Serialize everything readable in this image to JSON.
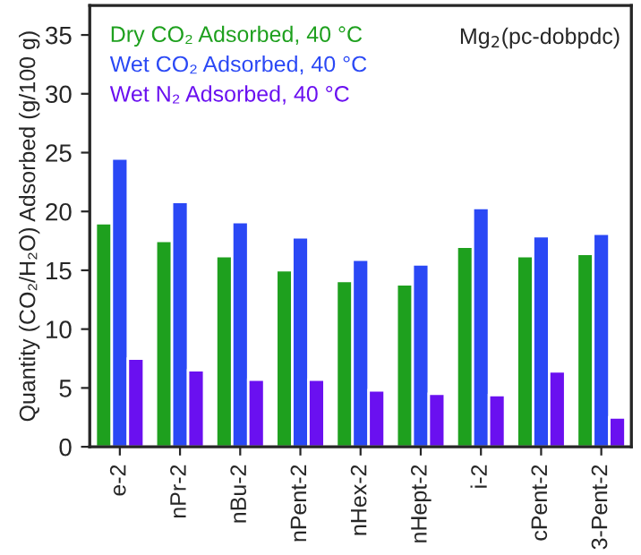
{
  "chart_data": {
    "type": "bar",
    "ylabel": "Quantity (CO₂/H₂O) Adsorbed (g/100 g)",
    "categories": [
      "e-2",
      "nPr-2",
      "nBu-2",
      "nPent-2",
      "nHex-2",
      "nHept-2",
      "i-2",
      "cPent-2",
      "3-Pent-2"
    ],
    "series": [
      {
        "name": "Dry CO₂ Adsorbed, 40 °C",
        "color": "#1ea01e",
        "values": [
          19.0,
          17.5,
          16.2,
          15.0,
          14.1,
          13.8,
          17.0,
          16.2,
          16.4
        ]
      },
      {
        "name": "Wet CO₂ Adsorbed, 40 °C",
        "color": "#2a48f5",
        "values": [
          24.5,
          20.8,
          19.1,
          17.8,
          15.9,
          15.5,
          20.3,
          17.9,
          18.1
        ]
      },
      {
        "name": "Wet N₂ Adsorbed, 40 °C",
        "color": "#6a10f0",
        "values": [
          7.5,
          6.5,
          5.7,
          5.7,
          4.8,
          4.5,
          4.4,
          6.4,
          2.5
        ]
      }
    ],
    "ylim": [
      0,
      37.5
    ],
    "yticks": [
      0,
      5,
      10,
      15,
      20,
      25,
      30,
      35
    ],
    "grid": false,
    "legend": "top left",
    "annotations": [
      "Mg$_{2}$(pc-dobpdc)"
    ]
  }
}
